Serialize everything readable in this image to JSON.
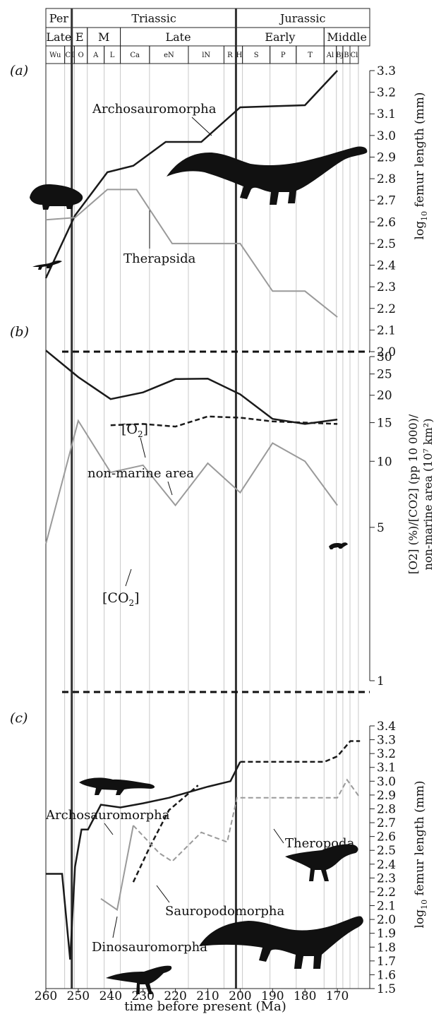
{
  "timescale": {
    "periods": [
      {
        "label": "Per",
        "start": 260,
        "end": 252
      },
      {
        "label": "Triassic",
        "start": 252,
        "end": 201.3
      },
      {
        "label": "Jurassic",
        "start": 201.3,
        "end": 160
      }
    ],
    "epochs": [
      {
        "label": "Late",
        "start": 260,
        "end": 252
      },
      {
        "label": "E",
        "start": 252,
        "end": 247.2
      },
      {
        "label": "M",
        "start": 247.2,
        "end": 237
      },
      {
        "label": "Late",
        "start": 237,
        "end": 201.3
      },
      {
        "label": "Early",
        "start": 201.3,
        "end": 174.1
      },
      {
        "label": "Middle",
        "start": 174.1,
        "end": 160
      }
    ],
    "stages": [
      {
        "label": "Wu",
        "start": 260,
        "end": 254.2
      },
      {
        "label": "C",
        "start": 254.2,
        "end": 252.2
      },
      {
        "label": "I",
        "start": 252.2,
        "end": 251.2
      },
      {
        "label": "O",
        "start": 251.2,
        "end": 247.2
      },
      {
        "label": "A",
        "start": 247.2,
        "end": 242
      },
      {
        "label": "L",
        "start": 242,
        "end": 237
      },
      {
        "label": "Ca",
        "start": 237,
        "end": 228
      },
      {
        "label": "eN",
        "start": 228,
        "end": 216
      },
      {
        "label": "lN",
        "start": 216,
        "end": 205
      },
      {
        "label": "R",
        "start": 205,
        "end": 201.3
      },
      {
        "label": "H",
        "start": 201.3,
        "end": 199.3
      },
      {
        "label": "S",
        "start": 199.3,
        "end": 190.8
      },
      {
        "label": "P",
        "start": 190.8,
        "end": 182.7
      },
      {
        "label": "T",
        "start": 182.7,
        "end": 174.1
      },
      {
        "label": "Al",
        "start": 174.1,
        "end": 170.3
      },
      {
        "label": "Bj",
        "start": 170.3,
        "end": 168.3
      },
      {
        "label": "B",
        "start": 168.3,
        "end": 166.1
      },
      {
        "label": "Cl",
        "start": 166.1,
        "end": 163.5
      }
    ]
  },
  "boundaries": [
    252,
    201.3
  ],
  "chart_data": [
    {
      "panel": "(a)",
      "type": "line",
      "ylabel": "log10 femur length (mm)",
      "yticks": [
        "2.0",
        "2.1",
        "2.2",
        "2.3",
        "2.4",
        "2.5",
        "2.6",
        "2.7",
        "2.8",
        "2.9",
        "3.0",
        "3.1",
        "3.2",
        "3.3"
      ],
      "ylim": [
        2.0,
        3.3
      ],
      "series": [
        {
          "name": "Archosauromorpha",
          "color": "#1a1a1a",
          "dash": false,
          "x": [
            260,
            251,
            241,
            233,
            223,
            212,
            200,
            180,
            170
          ],
          "y": [
            2.34,
            2.63,
            2.83,
            2.86,
            2.97,
            2.97,
            3.13,
            3.14,
            3.3
          ]
        },
        {
          "name": "Therapsida",
          "color": "#9a9a9a",
          "dash": false,
          "x": [
            260,
            251,
            241,
            232,
            221,
            200,
            190,
            180,
            170
          ],
          "y": [
            2.61,
            2.62,
            2.75,
            2.75,
            2.5,
            2.5,
            2.28,
            2.28,
            2.16
          ]
        }
      ]
    },
    {
      "panel": "(b)",
      "type": "line",
      "ylabel": "[O2] (%)/[CO2] (pp 10 000)/ non-marine area (10^7 km^2)",
      "yticks": [
        "1",
        "5",
        "10",
        "15",
        "20",
        "25",
        "30"
      ],
      "ylim": [
        1,
        30
      ],
      "series": [
        {
          "name": "[O2]",
          "color": "#1a1a1a",
          "dash": false,
          "x": [
            260,
            250,
            240,
            230,
            220,
            210,
            200,
            190,
            180,
            170
          ],
          "y": [
            32,
            24.2,
            19.2,
            20.6,
            23.7,
            23.8,
            20.2,
            15.6,
            14.8,
            15.5
          ]
        },
        {
          "name": "non-marine area",
          "color": "#1a1a1a",
          "dash": true,
          "x": [
            240,
            230,
            220,
            210,
            200,
            190,
            180,
            170
          ],
          "y": [
            14.6,
            14.8,
            14.4,
            16.0,
            15.8,
            15.2,
            15.0,
            14.8
          ]
        },
        {
          "name": "[CO2]",
          "color": "#9a9a9a",
          "dash": false,
          "x": [
            260,
            250,
            240,
            230,
            220,
            210,
            200,
            190,
            180,
            170
          ],
          "y": [
            4.2,
            15.3,
            8.9,
            9.6,
            6.3,
            9.8,
            7.2,
            12.1,
            10.0,
            6.3
          ]
        }
      ]
    },
    {
      "panel": "(c)",
      "type": "line",
      "xlabel": "time before present (Ma)",
      "ylabel": "log10 femur length (mm)",
      "xticks": [
        "260",
        "250",
        "240",
        "230",
        "220",
        "210",
        "200",
        "190",
        "180",
        "170"
      ],
      "yticks": [
        "1.5",
        "1.6",
        "1.7",
        "1.8",
        "1.9",
        "2.0",
        "2.1",
        "2.2",
        "2.3",
        "2.4",
        "2.5",
        "2.6",
        "2.7",
        "2.8",
        "2.9",
        "3.0",
        "3.1",
        "3.2",
        "3.3",
        "3.4"
      ],
      "ylim": [
        1.5,
        3.4
      ],
      "series": [
        {
          "name": "Archosauromorpha",
          "color": "#1a1a1a",
          "dash": false,
          "x": [
            260,
            255,
            252.5,
            251,
            249,
            247,
            243,
            237,
            230,
            222,
            210,
            203,
            200
          ],
          "y": [
            2.33,
            2.33,
            1.71,
            2.38,
            2.65,
            2.65,
            2.83,
            2.81,
            2.84,
            2.88,
            2.96,
            3.0,
            3.14
          ]
        },
        {
          "name": "Archosauromorpha-dashed",
          "color": "#1a1a1a",
          "dash": true,
          "x": [
            200,
            174,
            170,
            166,
            163
          ],
          "y": [
            3.14,
            3.14,
            3.18,
            3.29,
            3.29
          ]
        },
        {
          "name": "Sauropodomorpha",
          "color": "#1a1a1a",
          "dash": true,
          "x": [
            233,
            228,
            222,
            213
          ],
          "y": [
            2.27,
            2.52,
            2.79,
            2.97
          ]
        },
        {
          "name": "Dinosauromorpha",
          "color": "#9a9a9a",
          "dash": false,
          "x": [
            243,
            238,
            233
          ],
          "y": [
            2.15,
            2.07,
            2.68
          ]
        },
        {
          "name": "Theropoda",
          "color": "#9a9a9a",
          "dash": true,
          "x": [
            233,
            225,
            221,
            212,
            204,
            201,
            190,
            175,
            170,
            167,
            163
          ],
          "y": [
            2.68,
            2.48,
            2.42,
            2.63,
            2.56,
            2.88,
            2.88,
            2.88,
            2.88,
            3.01,
            2.88
          ]
        }
      ]
    }
  ],
  "labels": {
    "panel_a": "(a)",
    "panel_b": "(b)",
    "panel_c": "(c)",
    "a_arch": "Archosauromorpha",
    "a_ther": "Therapsida",
    "b_o2_main": "[O",
    "b_o2_sub": "2",
    "b_o2_end": "]",
    "b_nma": "non-marine area",
    "b_co2_main": "[CO",
    "b_co2_sub": "2",
    "b_co2_end": "]",
    "c_arch": "Archosauromorpha",
    "c_ther": "Theropoda",
    "c_saur": "Sauropodomorpha",
    "c_dino": "Dinosauromorpha",
    "ylabel_a_pre": "log",
    "ylabel_a_sub": "10",
    "ylabel_a_post": " femur length (mm)",
    "ylabel_b_line1": "[O2] (%)/[CO2] (pp 10 000)/",
    "ylabel_b_line2": "non-marine area (10⁷ km²)",
    "ylabel_c_pre": "log",
    "ylabel_c_sub": "10",
    "ylabel_c_post": " femur length (mm)",
    "xlabel": "time before present (Ma)"
  },
  "colors": {
    "dark": "#1a1a1a",
    "grey": "#9a9a9a",
    "grid": "#c8c8c8"
  }
}
